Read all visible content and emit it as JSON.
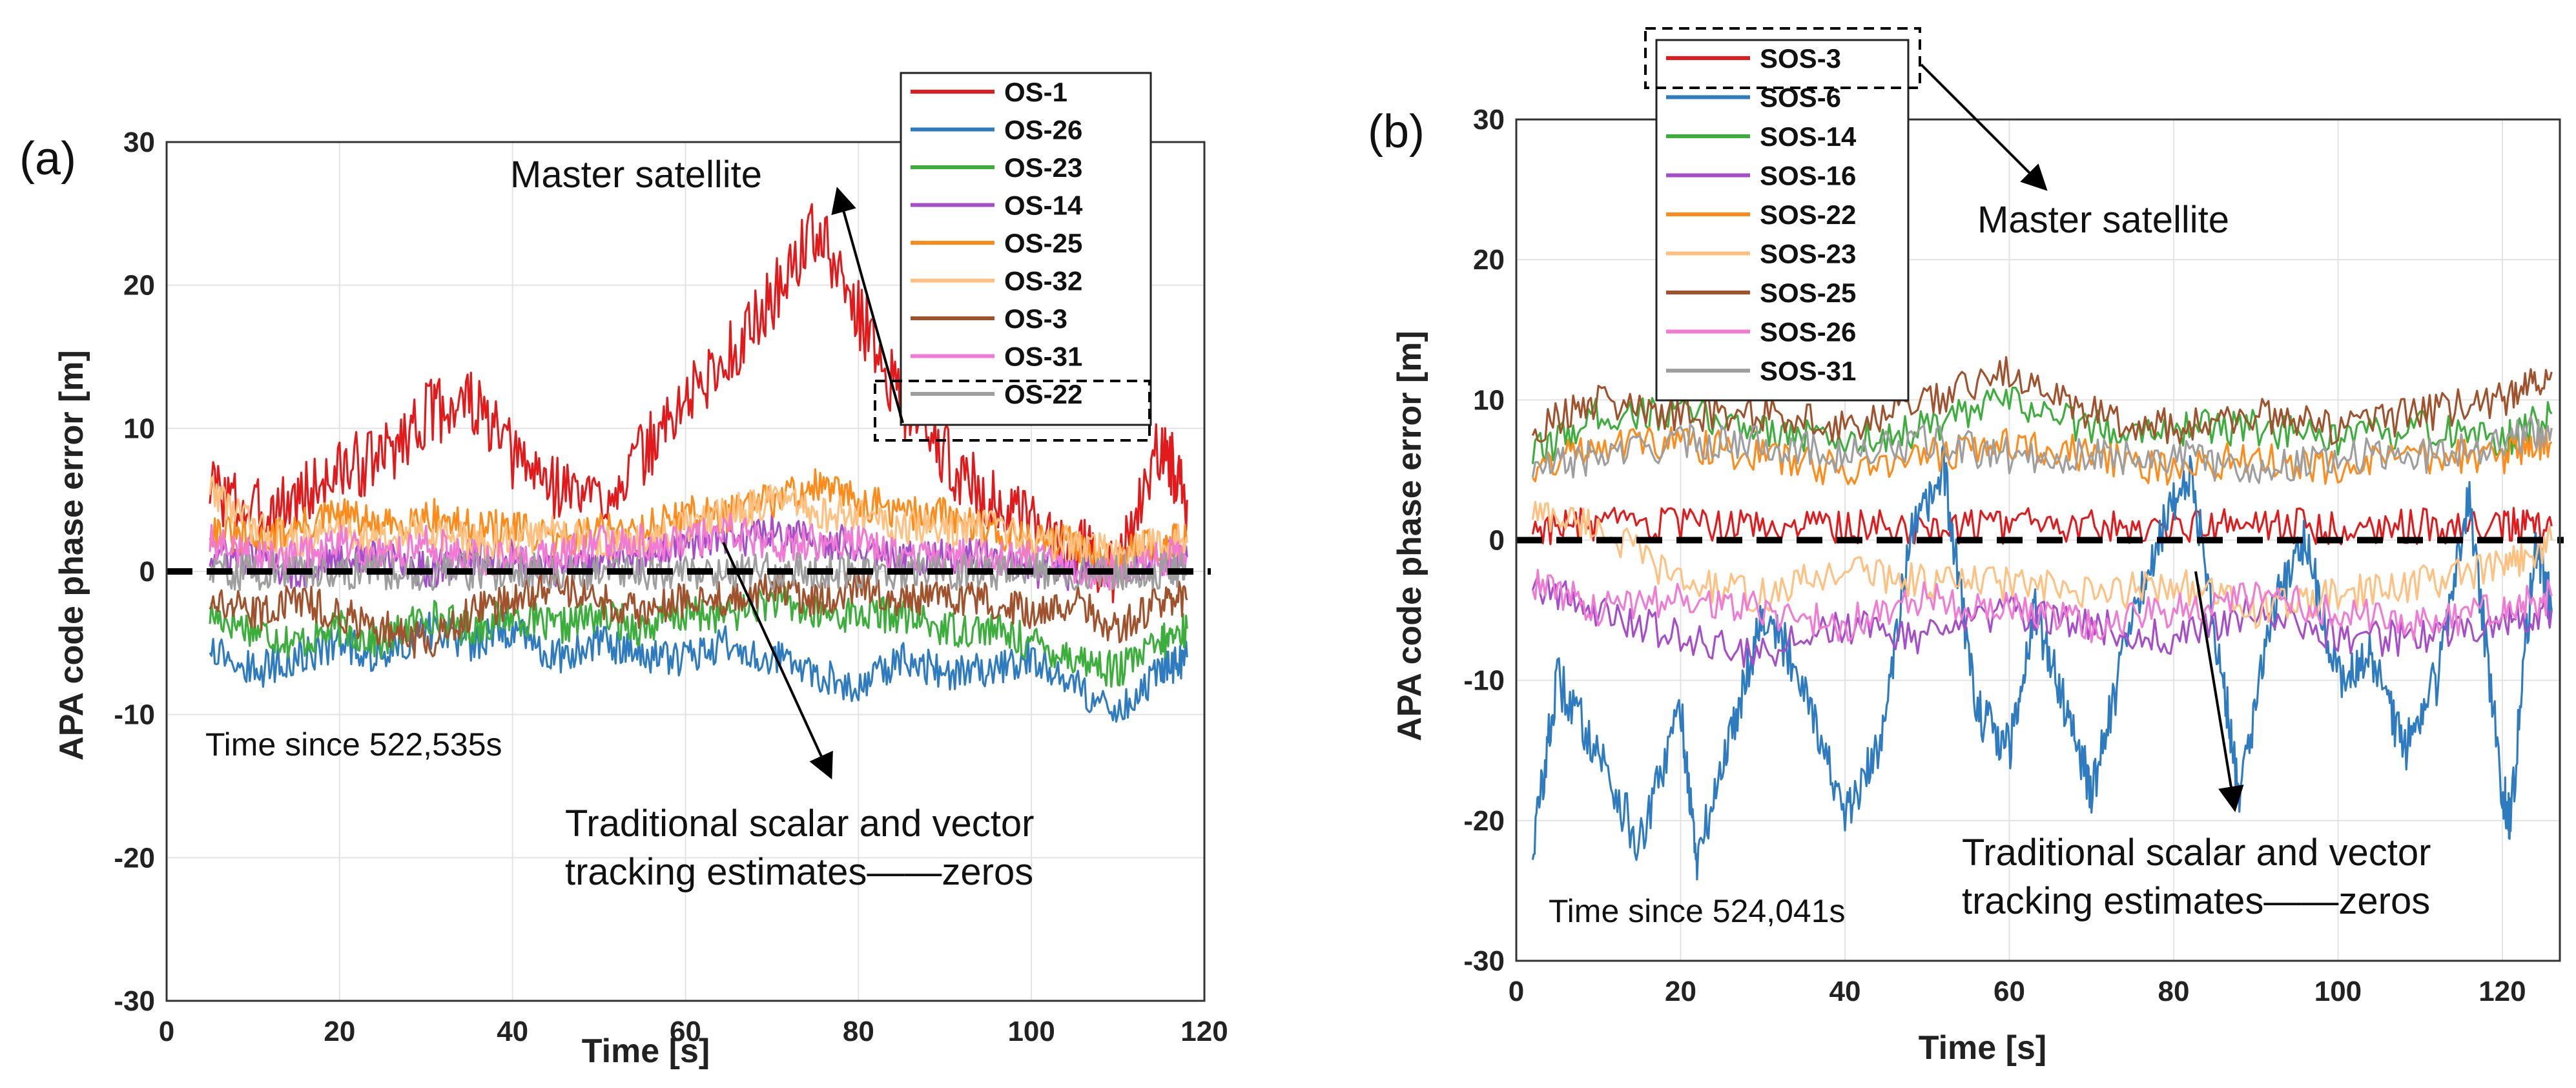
{
  "chart_data": [
    {
      "panel": "(a)",
      "type": "line",
      "xlabel": "Time [s]",
      "ylabel": "APA code phase error [m]",
      "xlim": [
        0,
        120
      ],
      "ylim": [
        -30,
        30
      ],
      "xticks": [
        0,
        20,
        40,
        60,
        80,
        100,
        120
      ],
      "yticks": [
        30,
        20,
        10,
        0,
        -10,
        -20,
        -30
      ],
      "grid": true,
      "time_annotation": "Time since 522,535s",
      "annotations": {
        "master": "Master satellite",
        "trad1": "Traditional scalar and vector",
        "trad2": "tracking estimates——zeros"
      },
      "reference_line": 0,
      "series": [
        {
          "name": "OS-1",
          "color": "#e31a1c",
          "x": [
            5,
            10,
            15,
            20,
            25,
            30,
            35,
            40,
            45,
            50,
            55,
            60,
            65,
            70,
            75,
            80,
            85,
            90,
            95,
            100,
            105,
            110,
            115,
            118
          ],
          "values": [
            6,
            4,
            5,
            7,
            8,
            11,
            12,
            8,
            6,
            5,
            8,
            12,
            15,
            19,
            24,
            18,
            12,
            8,
            5,
            3,
            2,
            0,
            9,
            5
          ]
        },
        {
          "name": "OS-26",
          "color": "#2e7bbf",
          "x": [
            5,
            10,
            15,
            20,
            25,
            30,
            35,
            40,
            45,
            50,
            55,
            60,
            65,
            70,
            75,
            80,
            85,
            90,
            95,
            100,
            105,
            110,
            115,
            118
          ],
          "values": [
            -5,
            -7,
            -6,
            -5,
            -6,
            -4,
            -5,
            -4,
            -6,
            -5,
            -6,
            -6,
            -5,
            -6,
            -7,
            -8,
            -6,
            -7,
            -7,
            -6,
            -8,
            -10,
            -7,
            -6
          ]
        },
        {
          "name": "OS-23",
          "color": "#3cae3c",
          "x": [
            5,
            10,
            15,
            20,
            25,
            30,
            35,
            40,
            45,
            50,
            55,
            60,
            65,
            70,
            75,
            80,
            85,
            90,
            95,
            100,
            105,
            110,
            115,
            118
          ],
          "values": [
            -3,
            -4,
            -5,
            -4,
            -5,
            -3,
            -4,
            -3,
            -4,
            -3,
            -4,
            -3,
            -3,
            -2,
            -3,
            -3,
            -3,
            -4,
            -4,
            -5,
            -6,
            -7,
            -5,
            -4
          ]
        },
        {
          "name": "OS-14",
          "color": "#a64dc9",
          "x": [
            5,
            10,
            15,
            20,
            25,
            30,
            35,
            40,
            45,
            50,
            55,
            60,
            65,
            70,
            75,
            80,
            85,
            90,
            95,
            100,
            105,
            110,
            115,
            118
          ],
          "values": [
            1,
            1,
            0,
            1,
            1,
            0,
            1,
            1,
            0,
            1,
            1,
            2,
            2,
            3,
            2,
            2,
            1,
            1,
            1,
            0,
            0,
            0,
            1,
            1
          ]
        },
        {
          "name": "OS-25",
          "color": "#ff8c1a",
          "x": [
            5,
            10,
            15,
            20,
            25,
            30,
            35,
            40,
            45,
            50,
            55,
            60,
            65,
            70,
            75,
            80,
            85,
            90,
            95,
            100,
            105,
            110,
            115,
            118
          ],
          "values": [
            3,
            2,
            3,
            4,
            3,
            4,
            3,
            3,
            2,
            3,
            3,
            4,
            4,
            5,
            6,
            5,
            4,
            4,
            3,
            2,
            2,
            1,
            2,
            2
          ]
        },
        {
          "name": "OS-32",
          "color": "#ffc080",
          "x": [
            5,
            10,
            15,
            20,
            25,
            30,
            35,
            40,
            45,
            50,
            55,
            60,
            65,
            70,
            75,
            80,
            85,
            90,
            95,
            100,
            105,
            110,
            115,
            118
          ],
          "values": [
            6,
            3,
            2,
            3,
            2,
            3,
            2,
            2,
            3,
            2,
            2,
            3,
            4,
            5,
            4,
            4,
            3,
            3,
            3,
            2,
            2,
            1,
            2,
            2
          ]
        },
        {
          "name": "OS-3",
          "color": "#a0522d",
          "x": [
            5,
            10,
            15,
            20,
            25,
            30,
            35,
            40,
            45,
            50,
            55,
            60,
            65,
            70,
            75,
            80,
            85,
            90,
            95,
            100,
            105,
            110,
            115,
            118
          ],
          "values": [
            -2,
            -3,
            -2,
            -3,
            -4,
            -5,
            -3,
            -2,
            -1,
            -2,
            -3,
            -2,
            -2,
            -1,
            -2,
            -1,
            -2,
            -2,
            -2,
            -3,
            -2,
            -4,
            -2,
            -2
          ]
        },
        {
          "name": "OS-31",
          "color": "#f07ad4",
          "x": [
            5,
            10,
            15,
            20,
            25,
            30,
            35,
            40,
            45,
            50,
            55,
            60,
            65,
            70,
            75,
            80,
            85,
            90,
            95,
            100,
            105,
            110,
            115,
            118
          ],
          "values": [
            2,
            1,
            1,
            2,
            1,
            2,
            1,
            1,
            1,
            2,
            2,
            2,
            3,
            2,
            2,
            2,
            1,
            1,
            1,
            1,
            0,
            0,
            1,
            1
          ]
        },
        {
          "name": "OS-22",
          "color": "#9e9e9e",
          "x": [
            5,
            10,
            15,
            20,
            25,
            30,
            35,
            40,
            45,
            50,
            55,
            60,
            65,
            70,
            75,
            80,
            85,
            90,
            95,
            100,
            105,
            110,
            115,
            118
          ],
          "values": [
            0,
            0,
            0,
            0,
            0,
            0,
            0,
            0,
            0,
            0,
            0,
            0,
            0,
            0,
            0,
            0,
            0,
            0,
            0,
            0,
            0,
            0,
            0,
            0
          ]
        }
      ]
    },
    {
      "panel": "(b)",
      "type": "line",
      "xlabel": "Time [s]",
      "ylabel": "APA code phase error [m]",
      "xlim": [
        0,
        127
      ],
      "ylim": [
        -30,
        30
      ],
      "xticks": [
        0,
        20,
        40,
        60,
        80,
        100,
        120
      ],
      "yticks": [
        30,
        20,
        10,
        0,
        -10,
        -20,
        -30
      ],
      "grid": true,
      "time_annotation": "Time since 524,041s",
      "annotations": {
        "master": "Master satellite",
        "trad1": "Traditional scalar and vector",
        "trad2": "tracking estimates——zeros"
      },
      "reference_line": 0,
      "series": [
        {
          "name": "SOS-3",
          "color": "#e31a1c",
          "x": [
            2,
            10,
            20,
            30,
            40,
            50,
            60,
            70,
            80,
            90,
            100,
            110,
            120,
            126
          ],
          "values": [
            1,
            1,
            1,
            1,
            1,
            1,
            1,
            1,
            1,
            1,
            1,
            1,
            1,
            1
          ]
        },
        {
          "name": "SOS-6",
          "color": "#2e7bbf",
          "x": [
            2,
            5,
            10,
            15,
            20,
            22,
            26,
            30,
            35,
            40,
            44,
            48,
            52,
            56,
            60,
            63,
            67,
            70,
            74,
            78,
            82,
            86,
            88,
            92,
            96,
            100,
            104,
            108,
            112,
            116,
            120,
            121,
            124,
            126
          ],
          "values": [
            -22,
            -10,
            -15,
            -22,
            -12,
            -23,
            -14,
            -5,
            -10,
            -20,
            -15,
            0,
            5,
            -12,
            -15,
            -5,
            -12,
            -18,
            -8,
            0,
            5,
            -10,
            -18,
            -5,
            0,
            -10,
            -8,
            -15,
            -10,
            3,
            -18,
            -20,
            0,
            -5
          ]
        },
        {
          "name": "SOS-14",
          "color": "#3cae3c",
          "x": [
            2,
            10,
            20,
            30,
            40,
            50,
            60,
            70,
            80,
            90,
            100,
            110,
            120,
            126
          ],
          "values": [
            6,
            9,
            9,
            8,
            7,
            8,
            10,
            8,
            8,
            8,
            7,
            8,
            7,
            9
          ]
        },
        {
          "name": "SOS-16",
          "color": "#a64dc9",
          "x": [
            2,
            10,
            20,
            30,
            40,
            50,
            60,
            70,
            80,
            90,
            100,
            110,
            120,
            126
          ],
          "values": [
            -3,
            -5,
            -7,
            -8,
            -6,
            -7,
            -5,
            -6,
            -7,
            -5,
            -7,
            -7,
            -6,
            -5
          ]
        },
        {
          "name": "SOS-22",
          "color": "#ff8c1a",
          "x": [
            2,
            10,
            20,
            30,
            40,
            50,
            60,
            70,
            80,
            90,
            100,
            110,
            120,
            126
          ],
          "values": [
            5,
            7,
            7,
            6,
            5,
            6,
            7,
            6,
            5,
            6,
            5,
            6,
            6,
            7
          ]
        },
        {
          "name": "SOS-23",
          "color": "#ffc080",
          "x": [
            2,
            10,
            20,
            30,
            40,
            50,
            60,
            70,
            80,
            90,
            100,
            110,
            120,
            126
          ],
          "values": [
            2,
            1,
            -3,
            -4,
            -2,
            -3,
            -3,
            -4,
            -3,
            -5,
            -4,
            -3,
            -2,
            0
          ]
        },
        {
          "name": "SOS-25",
          "color": "#a0522d",
          "x": [
            2,
            10,
            20,
            30,
            40,
            50,
            60,
            70,
            80,
            90,
            100,
            110,
            120,
            126
          ],
          "values": [
            8,
            10,
            9,
            9,
            8,
            10,
            12,
            9,
            8,
            9,
            8,
            9,
            10,
            12
          ]
        },
        {
          "name": "SOS-26",
          "color": "#f07ad4",
          "x": [
            2,
            10,
            20,
            30,
            40,
            50,
            60,
            70,
            80,
            90,
            100,
            110,
            120,
            126
          ],
          "values": [
            -3,
            -5,
            -4,
            -5,
            -6,
            -4,
            -5,
            -6,
            -5,
            -4,
            -5,
            -6,
            -5,
            -4
          ]
        },
        {
          "name": "SOS-31",
          "color": "#9e9e9e",
          "x": [
            2,
            10,
            20,
            30,
            40,
            50,
            60,
            70,
            80,
            90,
            100,
            110,
            120,
            126
          ],
          "values": [
            5,
            6,
            7,
            7,
            6,
            7,
            6,
            6,
            6,
            5,
            6,
            6,
            7,
            8
          ]
        }
      ]
    }
  ]
}
